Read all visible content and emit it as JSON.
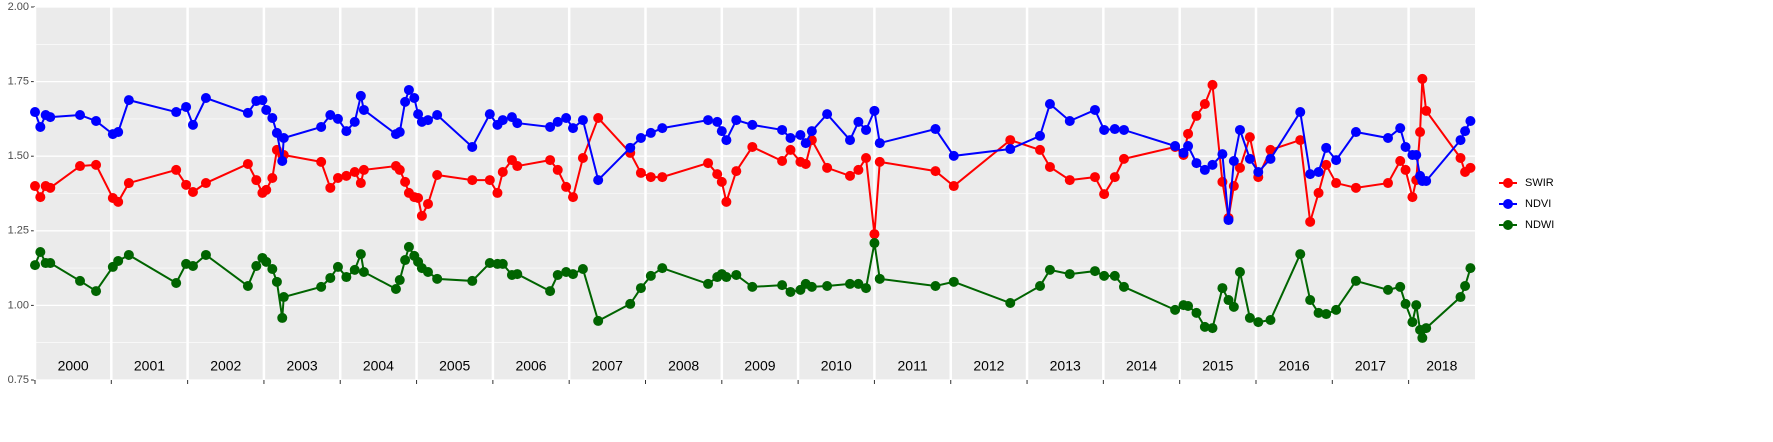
{
  "chart_data": {
    "type": "line",
    "x": [
      2000.0,
      2000.07,
      2000.14,
      2000.2,
      2000.59,
      2000.8,
      2001.02,
      2001.09,
      2001.23,
      2001.85,
      2001.98,
      2002.07,
      2002.24,
      2002.79,
      2002.9,
      2002.98,
      2003.03,
      2003.11,
      2003.17,
      2003.24,
      2003.26,
      2003.75,
      2003.87,
      2003.97,
      2004.08,
      2004.19,
      2004.27,
      2004.31,
      2004.73,
      2004.78,
      2004.85,
      2004.9,
      2004.97,
      2005.02,
      2005.07,
      2005.15,
      2005.27,
      2005.73,
      2005.96,
      2006.06,
      2006.13,
      2006.25,
      2006.32,
      2006.75,
      2006.85,
      2006.96,
      2007.05,
      2007.18,
      2007.38,
      2007.8,
      2007.94,
      2008.07,
      2008.22,
      2008.82,
      2008.94,
      2009.0,
      2009.06,
      2009.19,
      2009.4,
      2009.79,
      2009.9,
      2010.03,
      2010.1,
      2010.18,
      2010.38,
      2010.68,
      2010.79,
      2010.89,
      2011.0,
      2011.07,
      2011.8,
      2012.04,
      2012.78,
      2013.17,
      2013.3,
      2013.56,
      2013.89,
      2014.01,
      2014.15,
      2014.27,
      2014.94,
      2015.05,
      2015.11,
      2015.22,
      2015.33,
      2015.43,
      2015.56,
      2015.64,
      2015.71,
      2015.79,
      2015.92,
      2016.03,
      2016.19,
      2016.58,
      2016.71,
      2016.82,
      2016.92,
      2017.05,
      2017.31,
      2017.73,
      2017.89,
      2017.96,
      2018.05,
      2018.1,
      2018.15,
      2018.18,
      2018.23,
      2018.68,
      2018.74,
      2018.81
    ],
    "series": [
      {
        "name": "SWIR",
        "color": "#ff0000",
        "values": [
          1.4,
          1.363,
          1.4,
          1.394,
          1.467,
          1.471,
          1.36,
          1.347,
          1.41,
          1.454,
          1.404,
          1.38,
          1.41,
          1.474,
          1.42,
          1.377,
          1.387,
          1.427,
          1.521,
          1.504,
          1.504,
          1.481,
          1.394,
          1.427,
          1.434,
          1.447,
          1.41,
          1.454,
          1.467,
          1.454,
          1.414,
          1.377,
          1.363,
          1.36,
          1.3,
          1.34,
          1.437,
          1.42,
          1.42,
          1.377,
          1.447,
          1.487,
          1.467,
          1.487,
          1.454,
          1.397,
          1.363,
          1.494,
          1.628,
          1.511,
          1.444,
          1.43,
          1.43,
          1.477,
          1.44,
          1.414,
          1.347,
          1.45,
          1.531,
          1.484,
          1.521,
          1.481,
          1.474,
          1.554,
          1.461,
          1.434,
          1.454,
          1.494,
          1.239,
          1.481,
          1.45,
          1.4,
          1.554,
          1.521,
          1.464,
          1.42,
          1.43,
          1.373,
          1.43,
          1.491,
          1.531,
          1.504,
          1.575,
          1.635,
          1.675,
          1.739,
          1.414,
          1.293,
          1.4,
          1.461,
          1.564,
          1.43,
          1.521,
          1.554,
          1.28,
          1.377,
          1.471,
          1.41,
          1.394,
          1.41,
          1.484,
          1.454,
          1.363,
          1.42,
          1.581,
          1.759,
          1.652,
          1.494,
          1.447,
          1.461
        ]
      },
      {
        "name": "NDVI",
        "color": "#0000ff",
        "values": [
          1.648,
          1.598,
          1.638,
          1.631,
          1.638,
          1.618,
          1.574,
          1.581,
          1.688,
          1.648,
          1.665,
          1.605,
          1.695,
          1.645,
          1.685,
          1.688,
          1.655,
          1.628,
          1.578,
          1.484,
          1.561,
          1.598,
          1.638,
          1.625,
          1.584,
          1.615,
          1.702,
          1.655,
          1.574,
          1.581,
          1.682,
          1.722,
          1.695,
          1.641,
          1.615,
          1.621,
          1.638,
          1.531,
          1.641,
          1.605,
          1.621,
          1.631,
          1.611,
          1.598,
          1.615,
          1.628,
          1.594,
          1.621,
          1.42,
          1.528,
          1.561,
          1.578,
          1.594,
          1.621,
          1.615,
          1.584,
          1.554,
          1.621,
          1.605,
          1.588,
          1.561,
          1.571,
          1.544,
          1.584,
          1.641,
          1.554,
          1.615,
          1.588,
          1.652,
          1.544,
          1.591,
          1.501,
          1.524,
          1.568,
          1.675,
          1.618,
          1.655,
          1.588,
          1.591,
          1.588,
          1.534,
          1.511,
          1.534,
          1.477,
          1.454,
          1.471,
          1.507,
          1.286,
          1.484,
          1.588,
          1.491,
          1.447,
          1.491,
          1.648,
          1.44,
          1.447,
          1.528,
          1.487,
          1.581,
          1.561,
          1.594,
          1.531,
          1.504,
          1.504,
          1.434,
          1.417,
          1.417,
          1.554,
          1.584,
          1.618
        ]
      },
      {
        "name": "NDWI",
        "color": "#006400",
        "values": [
          1.135,
          1.179,
          1.142,
          1.142,
          1.082,
          1.048,
          1.129,
          1.149,
          1.169,
          1.075,
          1.139,
          1.132,
          1.169,
          1.065,
          1.132,
          1.159,
          1.146,
          1.122,
          1.079,
          0.958,
          1.028,
          1.062,
          1.092,
          1.129,
          1.095,
          1.119,
          1.172,
          1.112,
          1.055,
          1.085,
          1.152,
          1.196,
          1.166,
          1.146,
          1.125,
          1.112,
          1.089,
          1.082,
          1.142,
          1.139,
          1.139,
          1.102,
          1.105,
          1.048,
          1.102,
          1.112,
          1.105,
          1.122,
          0.948,
          1.005,
          1.058,
          1.099,
          1.125,
          1.072,
          1.095,
          1.105,
          1.095,
          1.102,
          1.062,
          1.068,
          1.045,
          1.052,
          1.072,
          1.062,
          1.065,
          1.072,
          1.072,
          1.058,
          1.209,
          1.089,
          1.065,
          1.079,
          1.008,
          1.065,
          1.119,
          1.105,
          1.115,
          1.099,
          1.099,
          1.062,
          0.985,
          1.001,
          0.998,
          0.975,
          0.928,
          0.924,
          1.058,
          1.018,
          0.995,
          1.112,
          0.958,
          0.944,
          0.951,
          1.172,
          1.018,
          0.975,
          0.971,
          0.985,
          1.082,
          1.052,
          1.062,
          1.005,
          0.944,
          1.001,
          0.918,
          0.891,
          0.924,
          1.028,
          1.065,
          1.125
        ]
      }
    ],
    "xlim": [
      2000,
      2018.87
    ],
    "xticks": [
      2000,
      2001,
      2002,
      2003,
      2004,
      2005,
      2006,
      2007,
      2008,
      2009,
      2010,
      2011,
      2012,
      2013,
      2014,
      2015,
      2016,
      2017,
      2018
    ],
    "year_labels": [
      "2000",
      "2001",
      "2002",
      "2003",
      "2004",
      "2005",
      "2006",
      "2007",
      "2008",
      "2009",
      "2010",
      "2011",
      "2012",
      "2013",
      "2014",
      "2015",
      "2016",
      "2017",
      "2018"
    ],
    "ylim": [
      0.75,
      2.0
    ],
    "yticks": [
      {
        "value": 0.75,
        "label": "0.75"
      },
      {
        "value": 1.0,
        "label": "1.00"
      },
      {
        "value": 1.25,
        "label": "1.25"
      },
      {
        "value": 1.5,
        "label": "1.50"
      },
      {
        "value": 1.75,
        "label": "1.75"
      },
      {
        "value": 2.0,
        "label": "2.00"
      }
    ],
    "grid": true,
    "legend": "right"
  }
}
